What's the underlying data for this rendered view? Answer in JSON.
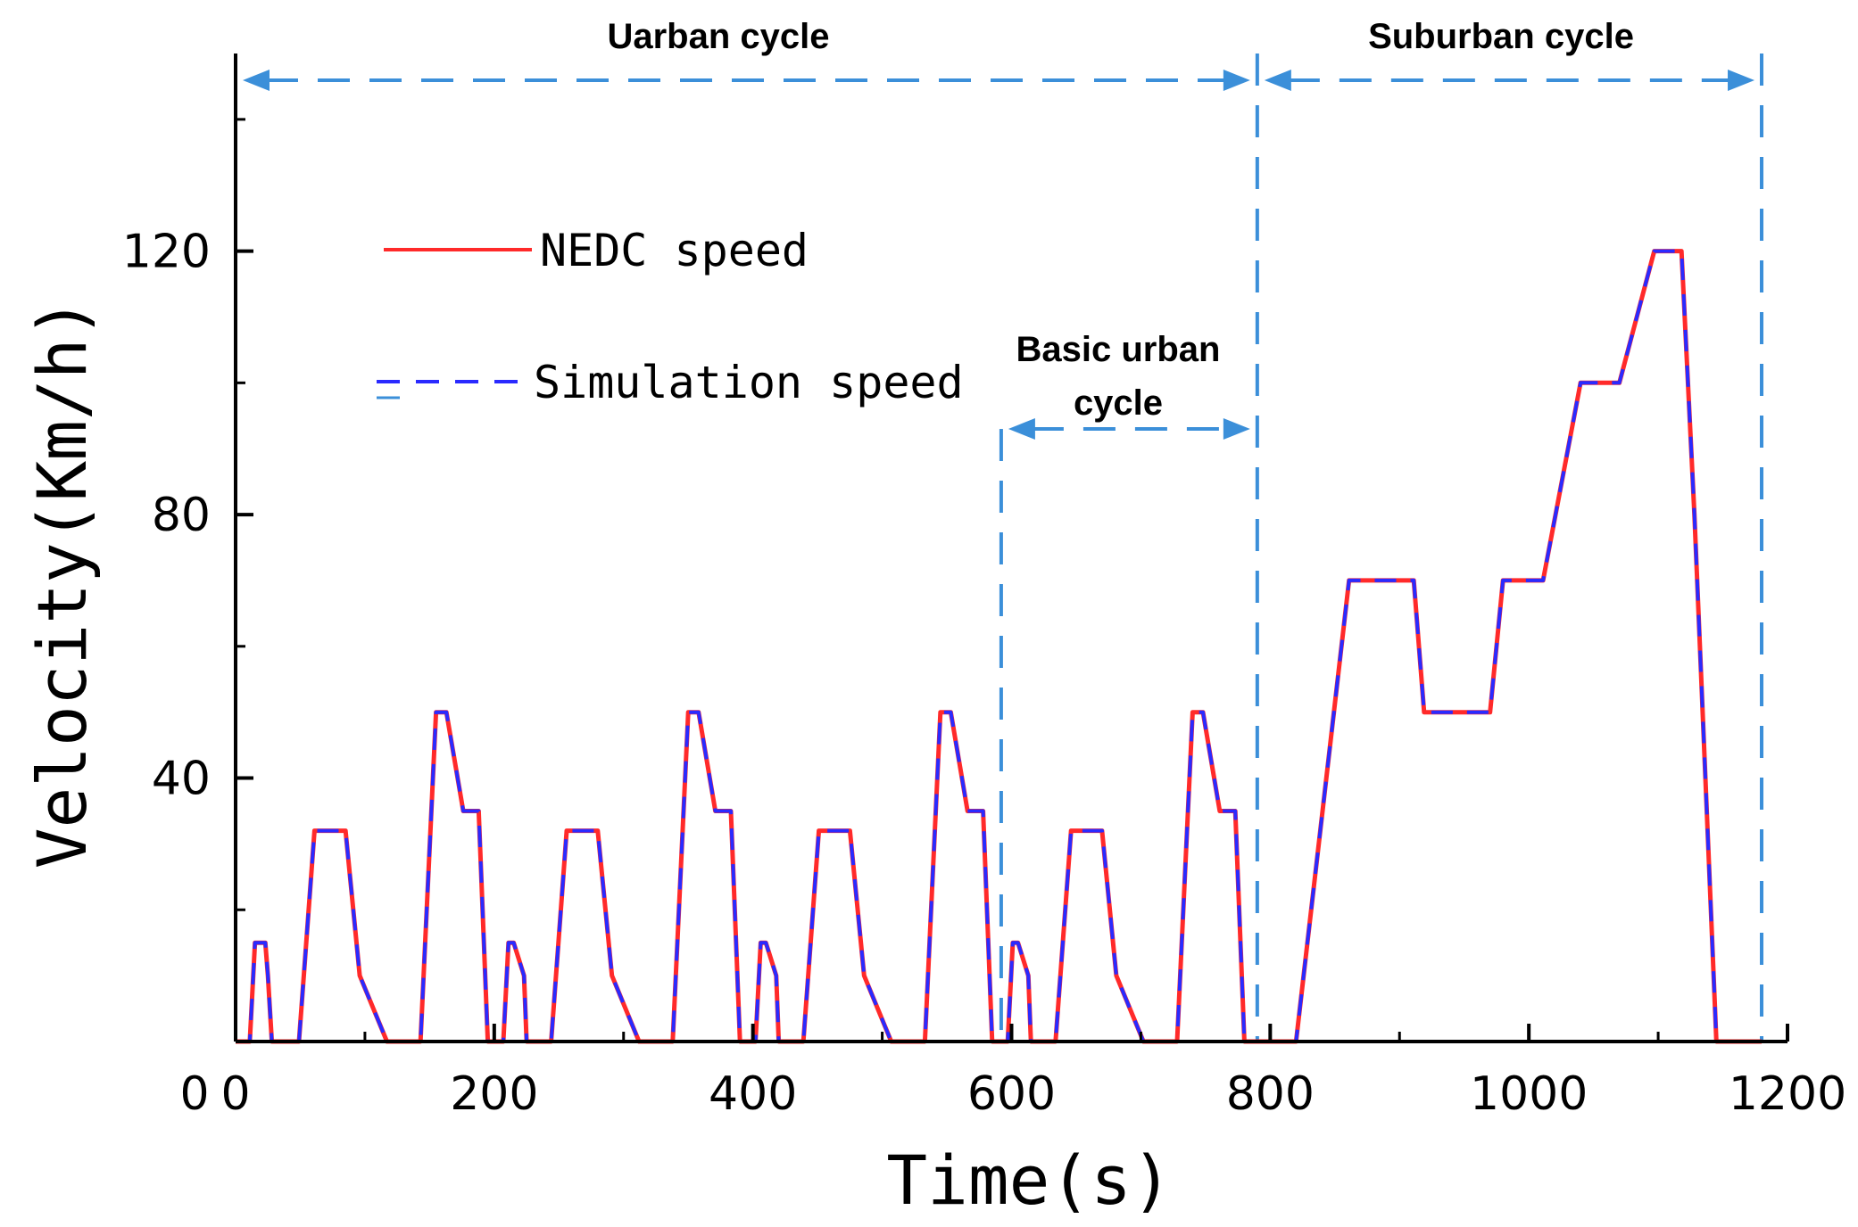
{
  "chart_data": {
    "type": "line",
    "title": "",
    "xlabel": "Time(s)",
    "ylabel": "Velocity(Km/h)",
    "xlim": [
      0,
      1200
    ],
    "ylim": [
      0,
      150
    ],
    "xticks": [
      0,
      200,
      400,
      600,
      800,
      1000,
      1200
    ],
    "yticks": [
      40,
      80,
      120
    ],
    "legend_position": "top-left",
    "colors": {
      "nedc": "#ff2a2a",
      "simulation": "#2a2aff",
      "annotation": "#3b8fd9"
    },
    "series": [
      {
        "name": "NEDC speed",
        "style": "solid",
        "x": [
          0,
          11,
          15,
          23,
          25,
          28,
          49,
          61,
          85,
          96,
          117,
          143,
          155,
          163,
          176,
          188,
          195,
          206,
          207,
          211,
          215,
          223,
          225,
          228,
          244,
          256,
          280,
          291,
          312,
          338,
          350,
          358,
          371,
          383,
          390,
          401,
          402,
          406,
          410,
          418,
          420,
          423,
          439,
          451,
          475,
          486,
          507,
          533,
          545,
          553,
          566,
          578,
          585,
          596,
          597,
          601,
          605,
          613,
          615,
          618,
          634,
          646,
          670,
          681,
          702,
          728,
          740,
          748,
          761,
          773,
          780,
          791,
          800,
          820,
          861,
          911,
          919,
          970,
          980,
          1011,
          1040,
          1070,
          1097,
          1118,
          1128,
          1145,
          1166,
          1180
        ],
        "y": [
          0,
          0,
          15,
          15,
          10,
          0,
          0,
          32,
          32,
          10,
          0,
          0,
          50,
          50,
          35,
          35,
          0,
          0,
          0,
          15,
          15,
          10,
          0,
          0,
          0,
          32,
          32,
          10,
          0,
          0,
          50,
          50,
          35,
          35,
          0,
          0,
          0,
          15,
          15,
          10,
          0,
          0,
          0,
          32,
          32,
          10,
          0,
          0,
          50,
          50,
          35,
          35,
          0,
          0,
          0,
          15,
          15,
          10,
          0,
          0,
          0,
          32,
          32,
          10,
          0,
          0,
          50,
          50,
          35,
          35,
          0,
          0,
          0,
          0,
          70,
          70,
          50,
          50,
          70,
          70,
          100,
          100,
          120,
          120,
          80,
          0,
          0,
          0
        ]
      },
      {
        "name": "Simulation speed",
        "style": "dashed",
        "x": [
          0,
          11,
          15,
          23,
          25,
          28,
          49,
          61,
          85,
          96,
          117,
          143,
          155,
          163,
          176,
          188,
          195,
          206,
          207,
          211,
          215,
          223,
          225,
          228,
          244,
          256,
          280,
          291,
          312,
          338,
          350,
          358,
          371,
          383,
          390,
          401,
          402,
          406,
          410,
          418,
          420,
          423,
          439,
          451,
          475,
          486,
          507,
          533,
          545,
          553,
          566,
          578,
          585,
          596,
          597,
          601,
          605,
          613,
          615,
          618,
          634,
          646,
          670,
          681,
          702,
          728,
          740,
          748,
          761,
          773,
          780,
          791,
          800,
          820,
          861,
          911,
          919,
          970,
          980,
          1011,
          1040,
          1070,
          1097,
          1118,
          1128,
          1145,
          1166,
          1180
        ],
        "y": [
          0,
          0,
          15,
          15,
          10,
          0,
          0,
          32,
          32,
          10,
          0,
          0,
          50,
          50,
          35,
          35,
          0,
          0,
          0,
          15,
          15,
          10,
          0,
          0,
          0,
          32,
          32,
          10,
          0,
          0,
          50,
          50,
          35,
          35,
          0,
          0,
          0,
          15,
          15,
          10,
          0,
          0,
          0,
          32,
          32,
          10,
          0,
          0,
          50,
          50,
          35,
          35,
          0,
          0,
          0,
          15,
          15,
          10,
          0,
          0,
          0,
          32,
          32,
          10,
          0,
          0,
          50,
          50,
          35,
          35,
          0,
          0,
          0,
          0,
          70,
          70,
          50,
          50,
          70,
          70,
          100,
          100,
          120,
          120,
          80,
          0,
          0,
          0
        ]
      }
    ],
    "annotations": [
      {
        "label": "Uarban cycle",
        "x_start": 0,
        "x_end": 790
      },
      {
        "label": "Suburban cycle",
        "x_start": 790,
        "x_end": 1180
      },
      {
        "label_line1": "Basic urban",
        "label_line2": "cycle",
        "x_start": 592,
        "x_end": 790,
        "y_level": 93
      }
    ]
  }
}
